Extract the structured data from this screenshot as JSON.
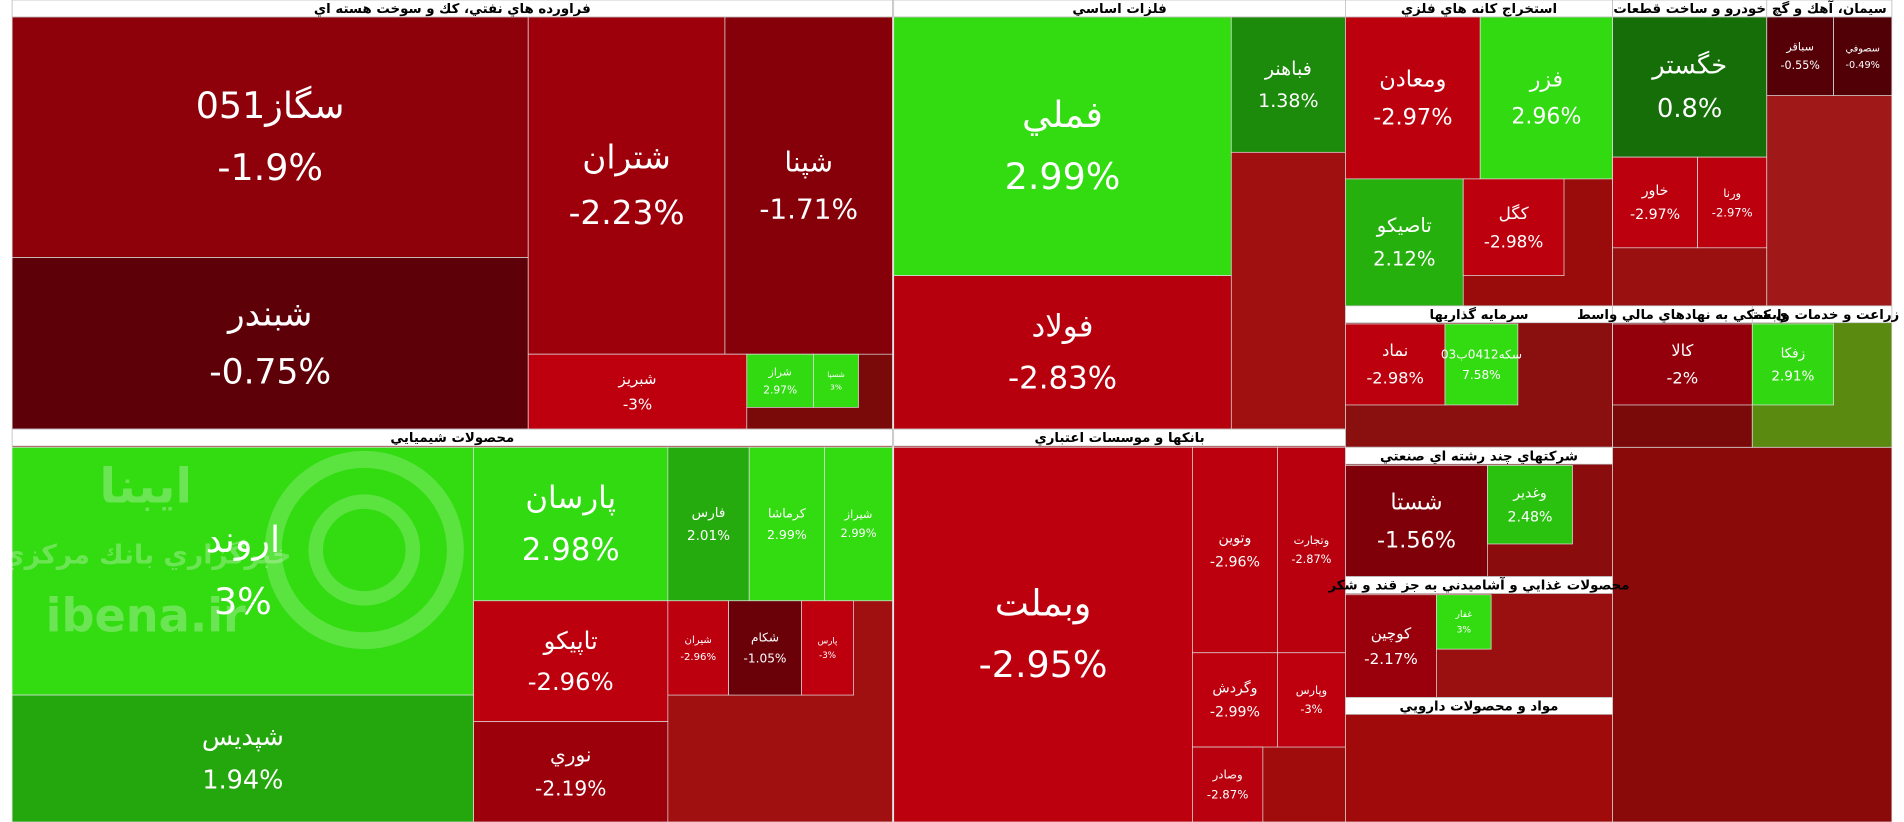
{
  "chart_data": {
    "type": "treemap",
    "watermark": {
      "brand": "ايبنا",
      "subtitle": "خبرگزاري بانك مركزي",
      "site": "ibena.ir"
    },
    "sectors": [
      {
        "name": "فراورده هاي نفتي، كك و سوخت هسته اي",
        "tiles": [
          {
            "name": "سگاز051",
            "value": -1.9,
            "label": "-1.9%"
          },
          {
            "name": "شبندر",
            "value": -0.75,
            "label": "-0.75%"
          },
          {
            "name": "شتران",
            "value": -2.23,
            "label": "-2.23%"
          },
          {
            "name": "شپنا",
            "value": -1.71,
            "label": "-1.71%"
          },
          {
            "name": "شبريز",
            "value": -3,
            "label": "-3%"
          },
          {
            "name": "شراز",
            "value": 2.97,
            "label": "2.97%"
          },
          {
            "name": "شسپا",
            "value": 3,
            "label": "3%"
          }
        ]
      },
      {
        "name": "فلزات اساسي",
        "tiles": [
          {
            "name": "فملي",
            "value": 2.99,
            "label": "2.99%"
          },
          {
            "name": "فولاد",
            "value": -2.83,
            "label": "-2.83%"
          },
          {
            "name": "فباهنر",
            "value": 1.38,
            "label": "1.38%"
          }
        ]
      },
      {
        "name": "استخراج كانه هاي فلزي",
        "tiles": [
          {
            "name": "ومعادن",
            "value": -2.97,
            "label": "-2.97%"
          },
          {
            "name": "فزر",
            "value": 2.96,
            "label": "2.96%"
          },
          {
            "name": "تاصيكو",
            "value": 2.12,
            "label": "2.12%"
          },
          {
            "name": "كگل",
            "value": -2.98,
            "label": "-2.98%"
          }
        ]
      },
      {
        "name": "خودرو و ساخت قطعات",
        "tiles": [
          {
            "name": "خگستر",
            "value": 0.8,
            "label": "0.8%"
          },
          {
            "name": "خاور",
            "value": -2.97,
            "label": "-2.97%"
          },
          {
            "name": "ورنا",
            "value": -2.97,
            "label": "-2.97%"
          }
        ]
      },
      {
        "name": "سيمان، آهك و گچ",
        "tiles": [
          {
            "name": "سباقر",
            "value": -0.55,
            "label": "-0.55%"
          },
          {
            "name": "سصوفي",
            "value": -0.49,
            "label": "-0.49%"
          }
        ]
      },
      {
        "name": "سرمايه گذاريها",
        "tiles": [
          {
            "name": "نماد",
            "value": -2.98,
            "label": "-2.98%"
          },
          {
            "name": "سكه0412ب03",
            "value": 7.58,
            "label": "7.58%"
          }
        ]
      },
      {
        "name": "بانكها و موسسات اعتباري",
        "tiles": [
          {
            "name": "وبملت",
            "value": -2.95,
            "label": "-2.95%"
          },
          {
            "name": "وتوين",
            "value": -2.96,
            "label": "-2.96%"
          },
          {
            "name": "وتجارت",
            "value": -2.87,
            "label": "-2.87%"
          },
          {
            "name": "وگردش",
            "value": -2.99,
            "label": "-2.99%"
          },
          {
            "name": "وپارس",
            "value": -3,
            "label": "-3%"
          },
          {
            "name": "وصادر",
            "value": -2.87,
            "label": "-2.87%"
          }
        ]
      },
      {
        "name": "محصولات شيميايي",
        "tiles": [
          {
            "name": "اروند",
            "value": 3,
            "label": "3%"
          },
          {
            "name": "شپديس",
            "value": 1.94,
            "label": "1.94%"
          },
          {
            "name": "پارسان",
            "value": 2.98,
            "label": "2.98%"
          },
          {
            "name": "تاپيكو",
            "value": -2.96,
            "label": "-2.96%"
          },
          {
            "name": "نوري",
            "value": -2.19,
            "label": "-2.19%"
          },
          {
            "name": "فارس",
            "value": 2.01,
            "label": "2.01%"
          },
          {
            "name": "كرماشا",
            "value": 2.99,
            "label": "2.99%"
          },
          {
            "name": "شيراز",
            "value": 2.99,
            "label": "2.99%"
          },
          {
            "name": "شيران",
            "value": -2.96,
            "label": "-2.96%"
          },
          {
            "name": "شكام",
            "value": -1.05,
            "label": "-1.05%"
          },
          {
            "name": "پارس",
            "value": -3,
            "label": "-3%"
          }
        ]
      },
      {
        "name": "شركتهاي چند رشته اي صنعتي",
        "tiles": [
          {
            "name": "شستا",
            "value": -1.56,
            "label": "-1.56%"
          },
          {
            "name": "وغدير",
            "value": 2.48,
            "label": "2.48%"
          }
        ]
      },
      {
        "name": "محصولات غذايي و آشاميدني به جز قند و شكر",
        "tiles": [
          {
            "name": "كوچين",
            "value": -2.17,
            "label": "-2.17%"
          },
          {
            "name": "غفار",
            "value": 3,
            "label": "3%"
          }
        ]
      },
      {
        "name": "مواد و محصولات دارويي"
      },
      {
        "name": "زراعت و خدمات وابسته",
        "tiles": [
          {
            "name": "زفكا",
            "value": 2.91,
            "label": "2.91%"
          }
        ]
      },
      {
        "name": "ي كمكي به نهادهاي مالي واسط",
        "tiles": [
          {
            "name": "كالا",
            "value": -2,
            "label": "-2%"
          }
        ]
      }
    ]
  }
}
